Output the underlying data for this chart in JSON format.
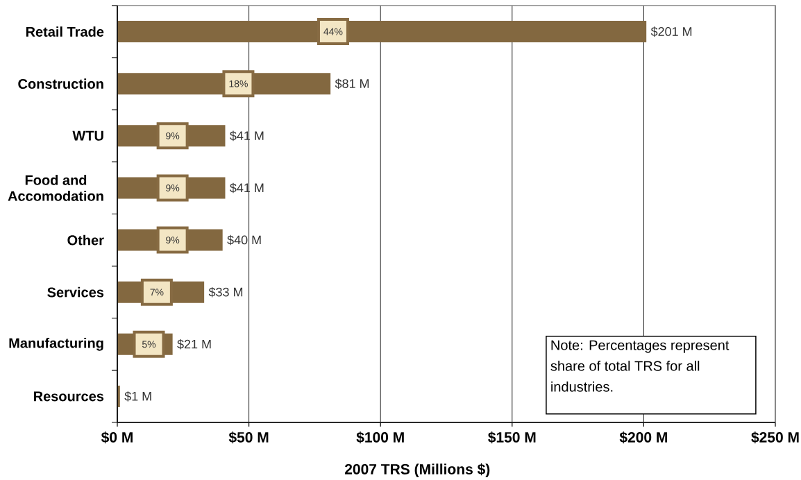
{
  "chart_data": {
    "type": "bar",
    "orientation": "horizontal",
    "xlabel": "2007 TRS (Millions $)",
    "categories": [
      "Retail Trade",
      "Construction",
      "WTU",
      "Food and Accomodation",
      "Other",
      "Services",
      "Manufacturing",
      "Resources"
    ],
    "values": [
      201,
      81,
      41,
      41,
      40,
      33,
      21,
      1
    ],
    "value_labels": [
      "$201 M",
      "$81 M",
      "$41 M",
      "$41 M",
      "$40 M",
      "$33 M",
      "$21 M",
      "$1 M"
    ],
    "color": "#836840",
    "xlim": [
      0,
      250
    ],
    "xticks": [
      {
        "value": 0,
        "label": "$0 M"
      },
      {
        "value": 50,
        "label": "$50 M"
      },
      {
        "value": 100,
        "label": "$100 M"
      },
      {
        "value": 150,
        "label": "$150 M"
      },
      {
        "value": 200,
        "label": "$200 M"
      },
      {
        "value": 250,
        "label": "$250 M"
      }
    ],
    "grid": "x",
    "annotations": [
      {
        "text": "44%",
        "x": 82,
        "y": "Retail Trade"
      },
      {
        "text": "18%",
        "x": 46,
        "y": "Construction"
      },
      {
        "text": "9%",
        "x": 21,
        "y": "WTU"
      },
      {
        "text": "9%",
        "x": 21,
        "y": "Food and Accomodation"
      },
      {
        "text": "9%",
        "x": 21,
        "y": "Other"
      },
      {
        "text": "7%",
        "x": 15,
        "y": "Services"
      },
      {
        "text": "5%",
        "x": 12,
        "y": "Manufacturing"
      },
      "Note: Percentages represent share of total TRS for all industries."
    ]
  }
}
